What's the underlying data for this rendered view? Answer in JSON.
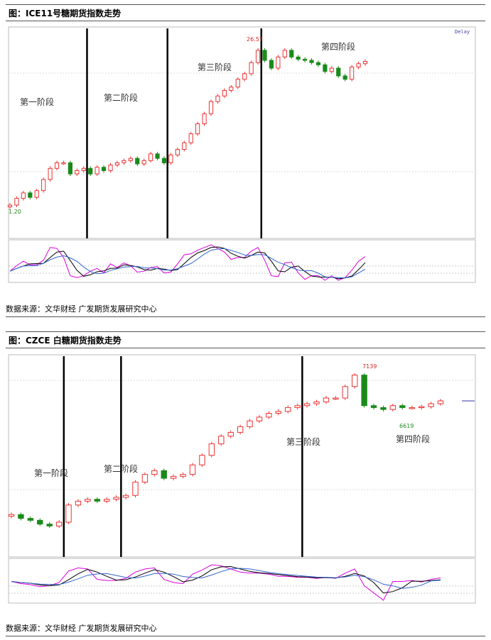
{
  "charts": [
    {
      "header": "图：ICE11号糖期货指数走势",
      "source": "数据来源：文华财经  广发期货发展研究中心",
      "delay_label": "Delay",
      "high_label": "26.57",
      "low_label": "1.20",
      "stages": [
        "第一阶段",
        "第二阶段",
        "第三阶段",
        "第四阶段"
      ]
    },
    {
      "header": "图：CZCE 白糖期货指数走势",
      "source": "数据来源：文华财经  广发期货发展研究中心",
      "high_label": "7139",
      "low_label": "6619",
      "stages": [
        "第一阶段",
        "第二阶段",
        "第三阶段",
        "第四阶段"
      ]
    }
  ],
  "chart_data": [
    {
      "type": "candlestick",
      "series": [
        {
          "values": [
            12.2,
            12.8,
            13.3,
            12.9,
            13.5,
            14.5,
            15.5,
            16.0,
            16.0,
            15.0,
            15.3,
            15.5,
            15.0,
            15.6,
            15.3,
            15.8,
            16.0,
            16.2,
            16.4,
            15.9,
            16.2,
            16.8,
            16.4,
            16.0,
            16.7,
            17.2,
            17.8,
            18.6,
            19.5,
            20.4,
            21.5,
            22.0,
            22.5,
            22.8,
            23.5,
            24.0,
            25.0,
            26.1,
            25.2,
            24.5,
            25.5,
            26.1,
            25.5,
            25.3,
            25.2,
            25.0,
            24.8,
            24.2,
            24.5,
            23.8,
            23.5,
            24.6,
            24.9,
            25.1
          ]
        }
      ],
      "stage_boundaries": [
        12,
        24,
        38
      ]
    },
    {
      "type": "candlestick",
      "series": [
        {
          "values": [
            6390,
            6370,
            6360,
            6340,
            6330,
            6350,
            6440,
            6460,
            6470,
            6460,
            6470,
            6480,
            6490,
            6560,
            6600,
            6620,
            6580,
            6590,
            6600,
            6650,
            6700,
            6760,
            6800,
            6820,
            6850,
            6880,
            6900,
            6920,
            6930,
            6950,
            6960,
            6970,
            6980,
            7000,
            7000,
            7060,
            7120,
            6960,
            6950,
            6940,
            6960,
            6950,
            6950,
            6955,
            6970,
            6985
          ]
        }
      ],
      "stage_boundaries": [
        6,
        12,
        31
      ]
    }
  ]
}
